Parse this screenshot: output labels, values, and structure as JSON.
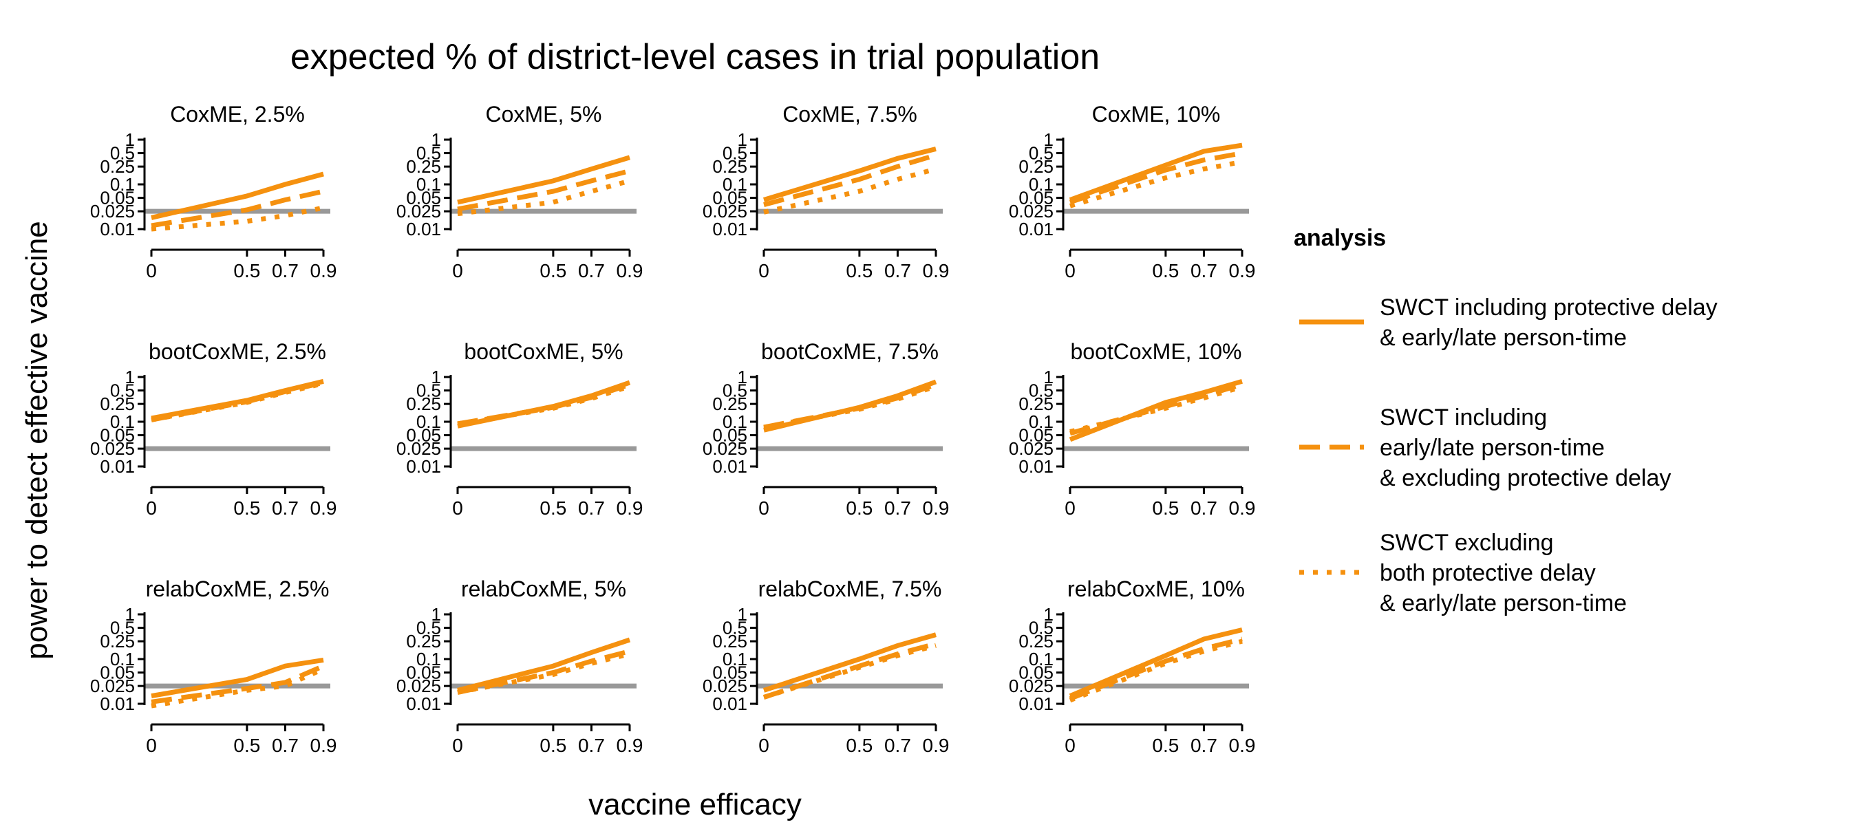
{
  "chart_data": {
    "type": "line",
    "title": "expected % of district-level cases in trial population",
    "xlabel": "vaccine efficacy",
    "ylabel": "power to detect effective vaccine",
    "y_scale": "log",
    "ylim": [
      0.005,
      1.2
    ],
    "xlim": [
      0,
      0.9
    ],
    "x_ticks": [
      "0",
      "0.5",
      "0.7",
      "0.9"
    ],
    "y_ticks": [
      "0.01",
      "0.025",
      "0.05",
      "0.1",
      "0.25",
      "0.5",
      "1"
    ],
    "reference_line": {
      "y": 0.025,
      "color": "#999999"
    },
    "series_color": "#F5910F",
    "legend": {
      "title": "analysis",
      "position": "right",
      "entries": [
        {
          "key": "incl",
          "style": "solid",
          "lines": [
            "SWCT including protective delay",
            "& early/late person-time"
          ]
        },
        {
          "key": "excl_delay",
          "style": "dashed",
          "lines": [
            "SWCT including",
            "early/late person-time",
            "& excluding protective delay"
          ]
        },
        {
          "key": "excl_both",
          "style": "dotted",
          "lines": [
            "SWCT excluding",
            "both protective delay",
            "& early/late person-time"
          ]
        }
      ]
    },
    "x": [
      0,
      0.5,
      0.7,
      0.9
    ],
    "rows": [
      "CoxME",
      "bootCoxME",
      "relabCoxME"
    ],
    "cols": [
      "2.5%",
      "5%",
      "7.5%",
      "10%"
    ],
    "panels": [
      {
        "title": "CoxME, 2.5%",
        "series": [
          {
            "style": "solid",
            "values": [
              0.018,
              0.055,
              0.1,
              0.17
            ]
          },
          {
            "style": "dashed",
            "values": [
              0.012,
              0.027,
              0.045,
              0.07
            ]
          },
          {
            "style": "dotted",
            "values": [
              0.01,
              0.015,
              0.02,
              0.03
            ]
          }
        ]
      },
      {
        "title": "CoxME, 5%",
        "series": [
          {
            "style": "solid",
            "values": [
              0.04,
              0.12,
              0.22,
              0.4
            ]
          },
          {
            "style": "dashed",
            "values": [
              0.028,
              0.07,
              0.12,
              0.2
            ]
          },
          {
            "style": "dotted",
            "values": [
              0.022,
              0.04,
              0.07,
              0.12
            ]
          }
        ]
      },
      {
        "title": "CoxME, 7.5%",
        "series": [
          {
            "style": "solid",
            "values": [
              0.045,
              0.2,
              0.38,
              0.62
            ]
          },
          {
            "style": "dashed",
            "values": [
              0.035,
              0.13,
              0.25,
              0.45
            ]
          },
          {
            "style": "dotted",
            "values": [
              0.024,
              0.07,
              0.13,
              0.22
            ]
          }
        ]
      },
      {
        "title": "CoxME, 10%",
        "series": [
          {
            "style": "solid",
            "values": [
              0.045,
              0.27,
              0.55,
              0.75
            ]
          },
          {
            "style": "dashed",
            "values": [
              0.04,
              0.21,
              0.35,
              0.5
            ]
          },
          {
            "style": "dotted",
            "values": [
              0.033,
              0.14,
              0.22,
              0.32
            ]
          }
        ]
      },
      {
        "title": "bootCoxME, 2.5%",
        "series": [
          {
            "style": "solid",
            "values": [
              0.12,
              0.3,
              0.5,
              0.8
            ]
          },
          {
            "style": "dashed",
            "values": [
              0.11,
              0.28,
              0.47,
              0.75
            ]
          },
          {
            "style": "dotted",
            "values": [
              0.11,
              0.27,
              0.45,
              0.72
            ]
          }
        ]
      },
      {
        "title": "bootCoxME, 5%",
        "series": [
          {
            "style": "solid",
            "values": [
              0.08,
              0.22,
              0.38,
              0.75
            ]
          },
          {
            "style": "dashed",
            "values": [
              0.09,
              0.21,
              0.35,
              0.68
            ]
          },
          {
            "style": "dotted",
            "values": [
              0.09,
              0.2,
              0.33,
              0.62
            ]
          }
        ]
      },
      {
        "title": "bootCoxME, 7.5%",
        "series": [
          {
            "style": "solid",
            "values": [
              0.065,
              0.21,
              0.38,
              0.78
            ]
          },
          {
            "style": "dashed",
            "values": [
              0.075,
              0.2,
              0.34,
              0.68
            ]
          },
          {
            "style": "dotted",
            "values": [
              0.075,
              0.19,
              0.32,
              0.62
            ]
          }
        ]
      },
      {
        "title": "bootCoxME, 10%",
        "series": [
          {
            "style": "solid",
            "values": [
              0.04,
              0.27,
              0.45,
              0.8
            ]
          },
          {
            "style": "dashed",
            "values": [
              0.055,
              0.22,
              0.38,
              0.68
            ]
          },
          {
            "style": "dotted",
            "values": [
              0.06,
              0.2,
              0.34,
              0.6
            ]
          }
        ]
      },
      {
        "title": "relabCoxME, 2.5%",
        "series": [
          {
            "style": "solid",
            "values": [
              0.015,
              0.035,
              0.07,
              0.095
            ]
          },
          {
            "style": "dashed",
            "values": [
              0.011,
              0.022,
              0.03,
              0.07
            ]
          },
          {
            "style": "dotted",
            "values": [
              0.009,
              0.02,
              0.025,
              0.06
            ]
          }
        ]
      },
      {
        "title": "relabCoxME, 5%",
        "series": [
          {
            "style": "solid",
            "values": [
              0.02,
              0.07,
              0.14,
              0.27
            ]
          },
          {
            "style": "dashed",
            "values": [
              0.018,
              0.05,
              0.09,
              0.15
            ]
          },
          {
            "style": "dotted",
            "values": [
              0.018,
              0.045,
              0.08,
              0.13
            ]
          }
        ]
      },
      {
        "title": "relabCoxME, 7.5%",
        "series": [
          {
            "style": "solid",
            "values": [
              0.02,
              0.1,
              0.2,
              0.35
            ]
          },
          {
            "style": "dashed",
            "values": [
              0.014,
              0.07,
              0.13,
              0.22
            ]
          },
          {
            "style": "dotted",
            "values": [
              0.014,
              0.065,
              0.12,
              0.2
            ]
          }
        ]
      },
      {
        "title": "relabCoxME, 10%",
        "series": [
          {
            "style": "solid",
            "values": [
              0.015,
              0.12,
              0.28,
              0.45
            ]
          },
          {
            "style": "dashed",
            "values": [
              0.013,
              0.09,
              0.17,
              0.28
            ]
          },
          {
            "style": "dotted",
            "values": [
              0.012,
              0.08,
              0.15,
              0.25
            ]
          }
        ]
      }
    ]
  }
}
